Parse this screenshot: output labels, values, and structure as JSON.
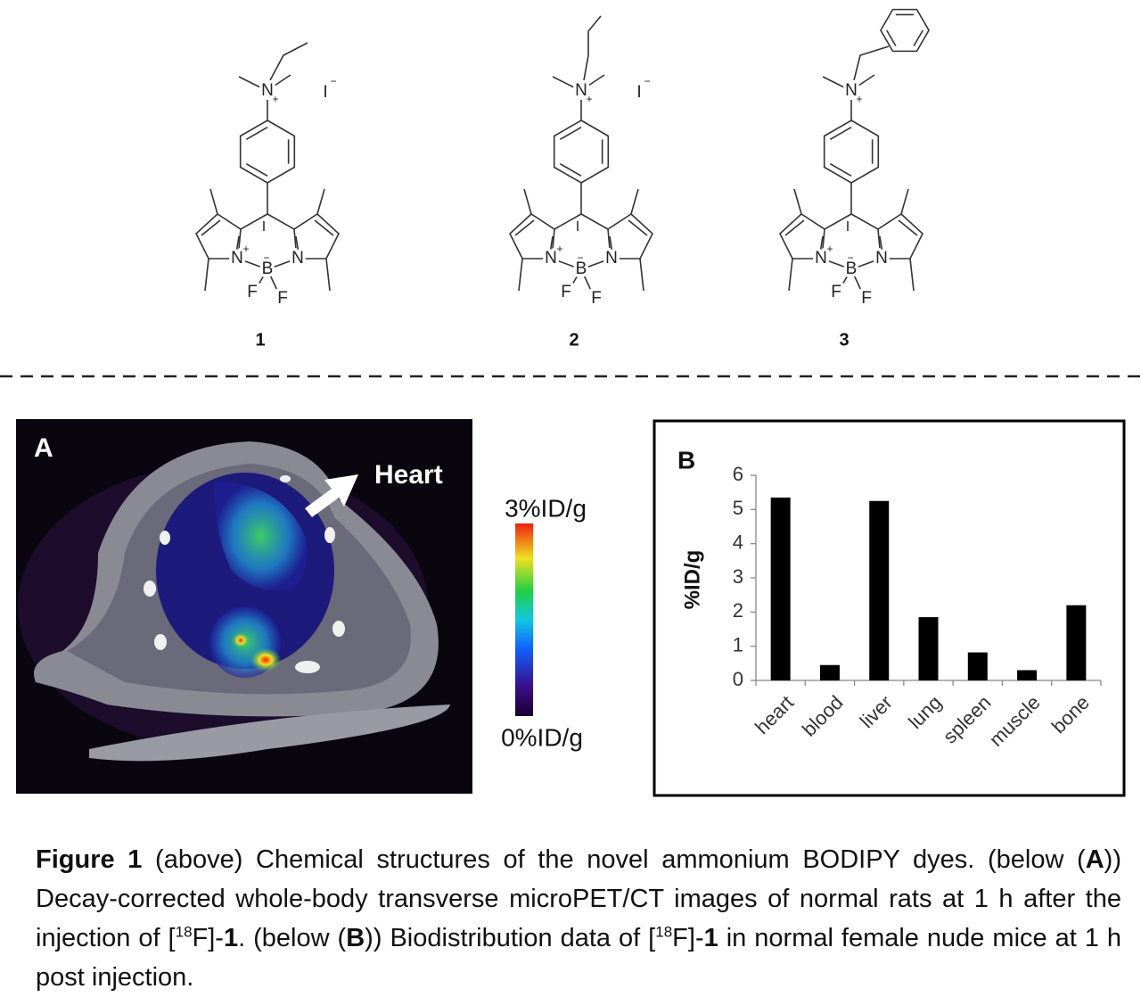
{
  "compounds": [
    {
      "label": "1",
      "atoms": [
        "N",
        "+",
        "N",
        "+",
        "B",
        "−",
        "N",
        "F",
        "F"
      ],
      "counterion": [
        "I",
        "−"
      ]
    },
    {
      "label": "2",
      "atoms": [
        "N",
        "+",
        "N",
        "+",
        "B",
        "−",
        "N",
        "F",
        "F"
      ],
      "counterion": [
        "I",
        "−"
      ]
    },
    {
      "label": "3",
      "atoms": [
        "N",
        "+",
        "N",
        "+",
        "B",
        "−",
        "N",
        "F",
        "F"
      ]
    }
  ],
  "panel_a": {
    "label": "A",
    "annotation": "Heart",
    "colorbar": {
      "max_label": "3%ID/g",
      "min_label": "0%ID/g"
    }
  },
  "chart_data": {
    "type": "bar",
    "panel_label": "B",
    "y_label": "%ID/g",
    "categories": [
      "heart",
      "blood",
      "liver",
      "lung",
      "spleen",
      "muscle",
      "bone"
    ],
    "values": [
      5.35,
      0.45,
      5.25,
      1.85,
      0.82,
      0.3,
      2.2
    ],
    "color": "#000000",
    "ylim": [
      0,
      6
    ],
    "yticks": [
      0,
      1,
      2,
      3,
      4,
      5,
      6
    ],
    "grid": false
  },
  "caption": [
    {
      "text": "Figure 1",
      "style": "bold"
    },
    {
      "text": " (above) Chemical structures of the novel ammonium BODIPY dyes. (below (",
      "style": "normal"
    },
    {
      "text": "A",
      "style": "bold"
    },
    {
      "text": ")) Decay-corrected whole-body transverse microPET/CT images of normal rats at 1 h after the injection of [",
      "style": "normal"
    },
    {
      "text": "18",
      "style": "sup"
    },
    {
      "text": "F]-",
      "style": "normal"
    },
    {
      "text": "1",
      "style": "bold"
    },
    {
      "text": ". (below (",
      "style": "normal"
    },
    {
      "text": "B",
      "style": "bold"
    },
    {
      "text": ")) Biodistribution data of [",
      "style": "normal"
    },
    {
      "text": "18",
      "style": "sup"
    },
    {
      "text": "F]-",
      "style": "normal"
    },
    {
      "text": "1",
      "style": "bold"
    },
    {
      "text": " in normal female nude mice at 1 h post injection.",
      "style": "normal"
    }
  ]
}
